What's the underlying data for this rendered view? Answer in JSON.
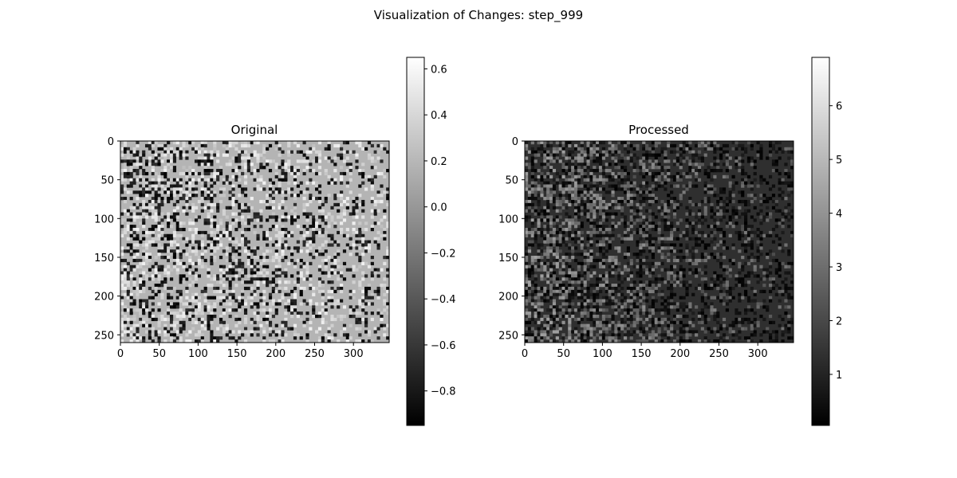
{
  "figure": {
    "suptitle": "Visualization of Changes: step_999"
  },
  "chart_data": [
    {
      "type": "heatmap",
      "title": "Original",
      "colormap": "gray",
      "xlabel": "",
      "ylabel": "",
      "image_shape": [
        260,
        346
      ],
      "xlim": [
        0,
        346
      ],
      "ylim": [
        260,
        0
      ],
      "x_ticks": [
        0,
        50,
        100,
        150,
        200,
        250,
        300
      ],
      "y_ticks": [
        0,
        50,
        100,
        150,
        200,
        250
      ],
      "colorbar": {
        "min": -0.95,
        "max": 0.65,
        "ticks": [
          -0.8,
          -0.6,
          -0.4,
          -0.2,
          0.0,
          0.2,
          0.4,
          0.6
        ],
        "tick_labels": [
          "−0.8",
          "−0.6",
          "−0.4",
          "−0.2",
          "0.0",
          "0.2",
          "0.4",
          "0.6"
        ]
      },
      "dominant_value": 0.18,
      "description_of_texture": "dense salt-and-pepper noise around a mid-gray background"
    },
    {
      "type": "heatmap",
      "title": "Processed",
      "colormap": "gray",
      "xlabel": "",
      "ylabel": "",
      "image_shape": [
        260,
        346
      ],
      "xlim": [
        0,
        346
      ],
      "ylim": [
        260,
        0
      ],
      "x_ticks": [
        0,
        50,
        100,
        150,
        200,
        250,
        300
      ],
      "y_ticks": [
        0,
        50,
        100,
        150,
        200,
        250
      ],
      "colorbar": {
        "min": 0.05,
        "max": 6.9,
        "ticks": [
          1,
          2,
          3,
          4,
          5,
          6
        ],
        "tick_labels": [
          "1",
          "2",
          "3",
          "4",
          "5",
          "6"
        ]
      },
      "dominant_value": 1.3,
      "description_of_texture": "dark image, brighter vertical streaks on the left half fading to the right"
    }
  ]
}
